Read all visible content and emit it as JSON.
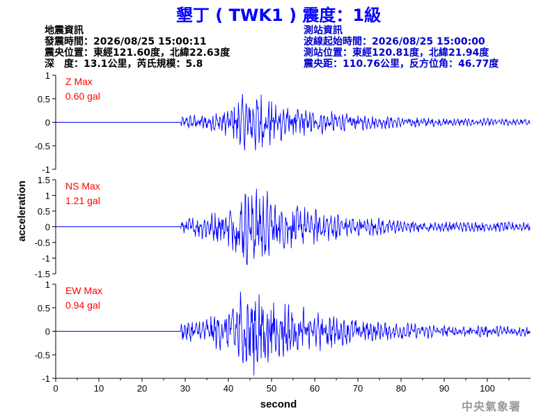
{
  "title": "墾丁 ( TWK1 ) 震度：1級",
  "earthquake_info": {
    "heading": "地震資訊",
    "origin_time": "發震時間：2026/08/25 15:00:11",
    "epicenter": "震央位置：東經121.60度，北緯22.63度",
    "depth_magnitude": "深　度：13.1公里，芮氏規模：5.8"
  },
  "station_info": {
    "heading": "測站資訊",
    "wave_start": "波線起始時間：2026/08/25 15:00:00",
    "station_location": "測站位置：東經120.81度，北緯21.94度",
    "distance_azimuth": "震央距：110.76公里，反方位角：46.77度"
  },
  "watermark": "中央氣象署",
  "colors": {
    "title": "#0000ff",
    "trace": "#0000ff",
    "max_label": "#ff0000",
    "station_text": "#0000cc"
  },
  "chart_data": {
    "type": "line",
    "xlabel": "second",
    "ylabel": "acceleration",
    "x_ticks": [
      0,
      10,
      20,
      30,
      40,
      50,
      60,
      70,
      80,
      90,
      100
    ],
    "xlim": [
      0,
      110
    ],
    "grid": false,
    "panels": [
      {
        "component": "Z",
        "max_label": "Z Max",
        "max_value": "0.60 gal",
        "peak": 0.6,
        "ylim": [
          -1,
          1
        ],
        "y_ticks": [
          "-1",
          "-0.5",
          "0",
          "0.5",
          "1"
        ],
        "y_tick_values": [
          -1,
          -0.5,
          0,
          0.5,
          1
        ]
      },
      {
        "component": "NS",
        "max_label": "NS Max",
        "max_value": "1.21 gal",
        "peak": 1.21,
        "ylim": [
          -1.5,
          1.5
        ],
        "y_ticks": [
          "-1.5",
          "-1",
          "-0.5",
          "0",
          "0.5",
          "1",
          "1.5"
        ],
        "y_tick_values": [
          -1.5,
          -1,
          -0.5,
          0,
          0.5,
          1,
          1.5
        ]
      },
      {
        "component": "EW",
        "max_label": "EW Max",
        "max_value": "0.94 gal",
        "peak": 0.94,
        "ylim": [
          -1,
          1
        ],
        "y_ticks": [
          "-1",
          "-0.5",
          "0",
          "0.5",
          "1"
        ],
        "y_tick_values": [
          -1,
          -0.5,
          0,
          0.5,
          1
        ]
      }
    ]
  }
}
